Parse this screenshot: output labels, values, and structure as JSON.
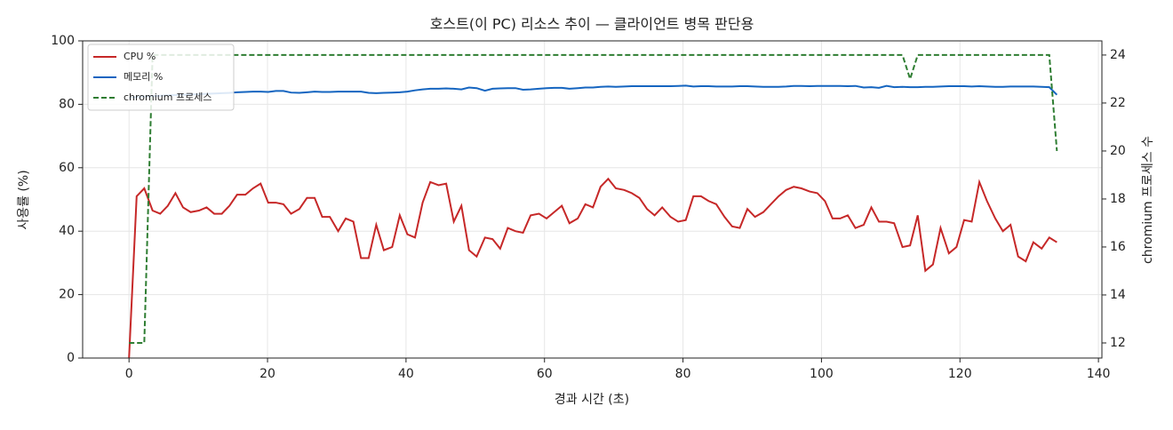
{
  "chart_data": {
    "type": "line",
    "title": "호스트(이 PC) 리소스 추이 — 클라이언트 병목 판단용",
    "xlabel": "경과 시간 (초)",
    "ylabel": "사용률 (%)",
    "y2label": "chromium 프로세스 수",
    "x": [
      0,
      1.1,
      2.2,
      3.4,
      4.5,
      5.6,
      6.7,
      7.8,
      8.9,
      10.1,
      11.2,
      12.3,
      13.4,
      14.5,
      15.6,
      16.8,
      17.9,
      19.0,
      20.1,
      21.2,
      22.3,
      23.4,
      24.6,
      25.7,
      26.8,
      27.9,
      29.0,
      30.2,
      31.3,
      32.4,
      33.5,
      34.6,
      35.7,
      36.8,
      38.0,
      39.1,
      40.2,
      41.3,
      42.4,
      43.5,
      44.7,
      45.8,
      46.9,
      48.0,
      49.1,
      50.2,
      51.4,
      52.5,
      53.6,
      54.7,
      55.8,
      56.9,
      58.0,
      59.2,
      60.3,
      61.4,
      62.5,
      63.6,
      64.8,
      65.9,
      67.0,
      68.1,
      69.2,
      70.3,
      71.5,
      72.6,
      73.7,
      74.8,
      75.9,
      77.0,
      78.2,
      79.3,
      80.4,
      81.5,
      82.6,
      83.7,
      84.8,
      86.0,
      87.1,
      88.2,
      89.3,
      90.4,
      91.6,
      92.7,
      93.8,
      94.9,
      96.0,
      97.1,
      98.3,
      99.4,
      100.5,
      101.6,
      102.7,
      103.8,
      104.9,
      106.1,
      107.2,
      108.3,
      109.4,
      110.5,
      111.7,
      112.8,
      113.9,
      115.0,
      116.1,
      117.2,
      118.4,
      119.5,
      120.6,
      121.7,
      122.8,
      123.9,
      125.1,
      126.2,
      127.3,
      128.4,
      129.5,
      130.6,
      131.8,
      132.9,
      134.0
    ],
    "series": [
      {
        "name": "CPU %",
        "color": "#c62828",
        "values": [
          0,
          51,
          53.5,
          46.5,
          45.5,
          48,
          52,
          47.5,
          46,
          46.5,
          47.5,
          45.5,
          45.5,
          48,
          51.5,
          51.5,
          53.5,
          55,
          49,
          49,
          48.5,
          45.5,
          47,
          50.5,
          50.5,
          44.5,
          44.5,
          40,
          44,
          43,
          31.5,
          31.5,
          42,
          34,
          35,
          45,
          39,
          38,
          49,
          55.5,
          54.5,
          55,
          43,
          48,
          34,
          32,
          38,
          37.5,
          34.5,
          41,
          40,
          39.5,
          45,
          45.5,
          44,
          46,
          48,
          42.5,
          44,
          48.5,
          47.5,
          54,
          56.5,
          53.5,
          53,
          52,
          50.5,
          47,
          45,
          47.5,
          44.5,
          43,
          43.5,
          51,
          51,
          49.5,
          48.5,
          44.5,
          41.5,
          41,
          47,
          44.5,
          46,
          48.5,
          51,
          53,
          54,
          53.5,
          52.5,
          52,
          49.5,
          44,
          44,
          45,
          41,
          42,
          47.5,
          43,
          43,
          42.5,
          35,
          35.5,
          45,
          27.5,
          29.5,
          41,
          33,
          35,
          43.5,
          43,
          55.5,
          49.5,
          44,
          40,
          42,
          32,
          30.5,
          36.5,
          34.5,
          38,
          36.5
        ]
      },
      {
        "name": "메모리 %",
        "color": "#1565c0",
        "values": [
          82.0,
          82.3,
          82.5,
          82.6,
          82.7,
          82.8,
          82.9,
          83.0,
          83.1,
          83.2,
          83.3,
          83.4,
          83.5,
          83.6,
          83.8,
          83.9,
          84.0,
          84.0,
          83.9,
          84.2,
          84.2,
          83.7,
          83.6,
          83.8,
          84.0,
          83.9,
          83.9,
          84.0,
          84.0,
          84.0,
          84.0,
          83.6,
          83.5,
          83.6,
          83.7,
          83.8,
          84.0,
          84.4,
          84.7,
          84.9,
          84.9,
          85.0,
          84.9,
          84.7,
          85.3,
          85.1,
          84.3,
          84.9,
          85.0,
          85.1,
          85.1,
          84.6,
          84.7,
          84.9,
          85.1,
          85.2,
          85.2,
          84.9,
          85.1,
          85.3,
          85.3,
          85.5,
          85.6,
          85.5,
          85.6,
          85.7,
          85.7,
          85.7,
          85.7,
          85.7,
          85.7,
          85.8,
          85.9,
          85.6,
          85.7,
          85.7,
          85.6,
          85.6,
          85.6,
          85.7,
          85.7,
          85.6,
          85.5,
          85.5,
          85.5,
          85.6,
          85.8,
          85.8,
          85.7,
          85.8,
          85.8,
          85.8,
          85.8,
          85.7,
          85.8,
          85.3,
          85.4,
          85.2,
          85.8,
          85.4,
          85.5,
          85.4,
          85.4,
          85.5,
          85.5,
          85.6,
          85.7,
          85.7,
          85.7,
          85.6,
          85.7,
          85.6,
          85.5,
          85.5,
          85.6,
          85.6,
          85.6,
          85.6,
          85.5,
          85.4,
          83.0
        ]
      },
      {
        "name": "chromium 프로세스",
        "color": "#2e7d32",
        "dashed": true,
        "axis": "y2",
        "values": [
          12,
          12,
          12,
          24,
          24,
          24,
          24,
          24,
          24,
          24,
          24,
          24,
          24,
          24,
          24,
          24,
          24,
          24,
          24,
          24,
          24,
          24,
          24,
          24,
          24,
          24,
          24,
          24,
          24,
          24,
          24,
          24,
          24,
          24,
          24,
          24,
          24,
          24,
          24,
          24,
          24,
          24,
          24,
          24,
          24,
          24,
          24,
          24,
          24,
          24,
          24,
          24,
          24,
          24,
          24,
          24,
          24,
          24,
          24,
          24,
          24,
          24,
          24,
          24,
          24,
          24,
          24,
          24,
          24,
          24,
          24,
          24,
          24,
          24,
          24,
          24,
          24,
          24,
          24,
          24,
          24,
          24,
          24,
          24,
          24,
          24,
          24,
          24,
          24,
          24,
          24,
          24,
          24,
          24,
          24,
          24,
          24,
          24,
          24,
          24,
          24,
          23,
          24,
          24,
          24,
          24,
          24,
          24,
          24,
          24,
          24,
          24,
          24,
          24,
          24,
          24,
          24,
          24,
          24,
          24,
          20
        ]
      }
    ],
    "xlim": [
      -6.7,
      140.5
    ],
    "ylim": [
      0,
      100
    ],
    "y2lim": [
      11.37,
      24.59
    ],
    "xticks": [
      0,
      20,
      40,
      60,
      80,
      100,
      120,
      140
    ],
    "yticks": [
      0,
      20,
      40,
      60,
      80,
      100
    ],
    "y2ticks": [
      12,
      14,
      16,
      18,
      20,
      22,
      24
    ],
    "grid": true,
    "legend": "upper left"
  }
}
